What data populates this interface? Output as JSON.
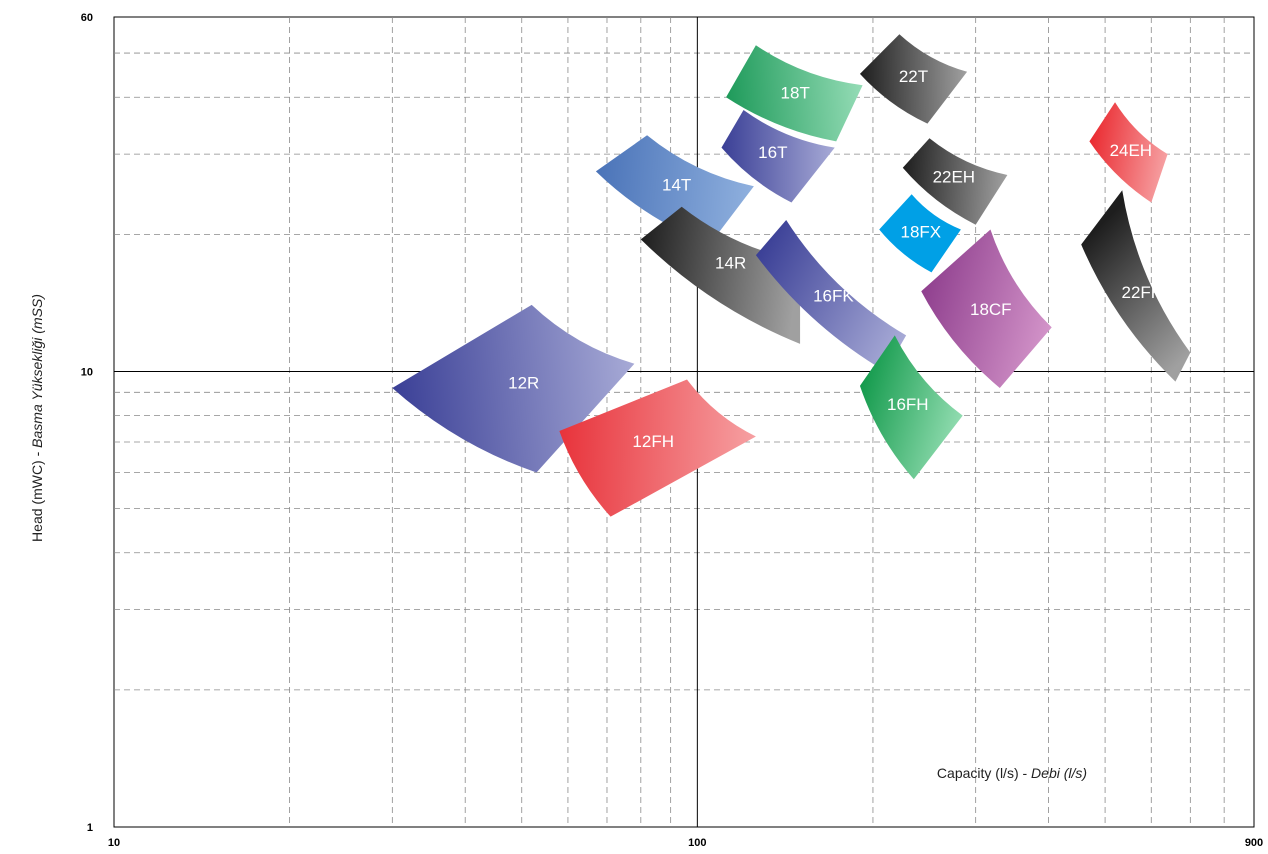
{
  "chart_data": {
    "type": "scatter",
    "title": "",
    "x_scale": "log",
    "y_scale": "log",
    "xlim": [
      10,
      900
    ],
    "ylim": [
      1,
      60
    ],
    "x_ticks": [
      "10",
      "100",
      "900"
    ],
    "y_ticks": [
      "1",
      "10",
      "60"
    ],
    "xlabel": {
      "main": "Capacity (l/s) - ",
      "italic": "Debi (l/s)"
    },
    "ylabel": {
      "main": "Head (mWC) - ",
      "italic": "Basma Yüksekliği (mSS)"
    },
    "grid": true,
    "regions": [
      {
        "name": "12R",
        "color_from": "#3a3f96",
        "color_to": "#a7aad6",
        "corners": [
          [
            30,
            9.2
          ],
          [
            52,
            14.0
          ],
          [
            78,
            10.4
          ],
          [
            53,
            6.0
          ]
        ]
      },
      {
        "name": "12FH",
        "color_from": "#e8333b",
        "color_to": "#f6a0a2",
        "corners": [
          [
            58,
            7.4
          ],
          [
            96,
            9.6
          ],
          [
            126,
            7.2
          ],
          [
            71,
            4.8
          ]
        ]
      },
      {
        "name": "14T",
        "color_from": "#4a73b8",
        "color_to": "#8fb0de",
        "corners": [
          [
            67,
            27.5
          ],
          [
            82,
            33.0
          ],
          [
            125,
            25.5
          ],
          [
            105,
            19.0
          ]
        ]
      },
      {
        "name": "14R",
        "color_from": "#1e1e1e",
        "color_to": "#a0a0a0",
        "corners": [
          [
            80,
            19.5
          ],
          [
            94,
            23.0
          ],
          [
            150,
            17.5
          ],
          [
            150,
            11.5
          ]
        ]
      },
      {
        "name": "16T",
        "color_from": "#3a3f96",
        "color_to": "#a7aad6",
        "corners": [
          [
            110,
            31.0
          ],
          [
            120,
            37.5
          ],
          [
            172,
            31.0
          ],
          [
            145,
            23.5
          ]
        ]
      },
      {
        "name": "18T",
        "color_from": "#1e9a5a",
        "color_to": "#95dcb6",
        "corners": [
          [
            112,
            40.0
          ],
          [
            126,
            52.0
          ],
          [
            192,
            42.5
          ],
          [
            173,
            32.0
          ]
        ]
      },
      {
        "name": "22T",
        "color_from": "#1e1e1e",
        "color_to": "#a0a0a0",
        "corners": [
          [
            190,
            45.0
          ],
          [
            222,
            55.0
          ],
          [
            290,
            45.5
          ],
          [
            248,
            35.0
          ]
        ]
      },
      {
        "name": "16FK",
        "color_from": "#3a3f96",
        "color_to": "#a7aad6",
        "corners": [
          [
            126,
            18.0
          ],
          [
            142,
            21.5
          ],
          [
            228,
            12.0
          ],
          [
            210,
            10.0
          ]
        ]
      },
      {
        "name": "16FH",
        "color_from": "#139a4c",
        "color_to": "#91dcb0",
        "corners": [
          [
            190,
            9.3
          ],
          [
            218,
            12.0
          ],
          [
            285,
            8.0
          ],
          [
            235,
            5.8
          ]
        ]
      },
      {
        "name": "18FX",
        "color_from": "#00a0e6",
        "color_to": "#00a0e6",
        "corners": [
          [
            205,
            20.5
          ],
          [
            233,
            24.5
          ],
          [
            283,
            20.5
          ],
          [
            252,
            16.5
          ]
        ]
      },
      {
        "name": "18CF",
        "color_from": "#8f3f8e",
        "color_to": "#d394c9",
        "corners": [
          [
            242,
            15.0
          ],
          [
            318,
            20.5
          ],
          [
            405,
            12.5
          ],
          [
            330,
            9.2
          ]
        ]
      },
      {
        "name": "22EH",
        "color_from": "#1e1e1e",
        "color_to": "#a0a0a0",
        "corners": [
          [
            225,
            28.0
          ],
          [
            250,
            32.5
          ],
          [
            340,
            27.0
          ],
          [
            300,
            21.0
          ]
        ]
      },
      {
        "name": "24EH",
        "color_from": "#ea2a30",
        "color_to": "#f6a0a2",
        "corners": [
          [
            470,
            32.0
          ],
          [
            520,
            39.0
          ],
          [
            640,
            30.0
          ],
          [
            600,
            23.5
          ]
        ]
      },
      {
        "name": "22FH",
        "color_from": "#1e1e1e",
        "color_to": "#a0a0a0",
        "corners": [
          [
            455,
            19.0
          ],
          [
            535,
            25.0
          ],
          [
            700,
            11.0
          ],
          [
            660,
            9.5
          ]
        ]
      }
    ]
  }
}
